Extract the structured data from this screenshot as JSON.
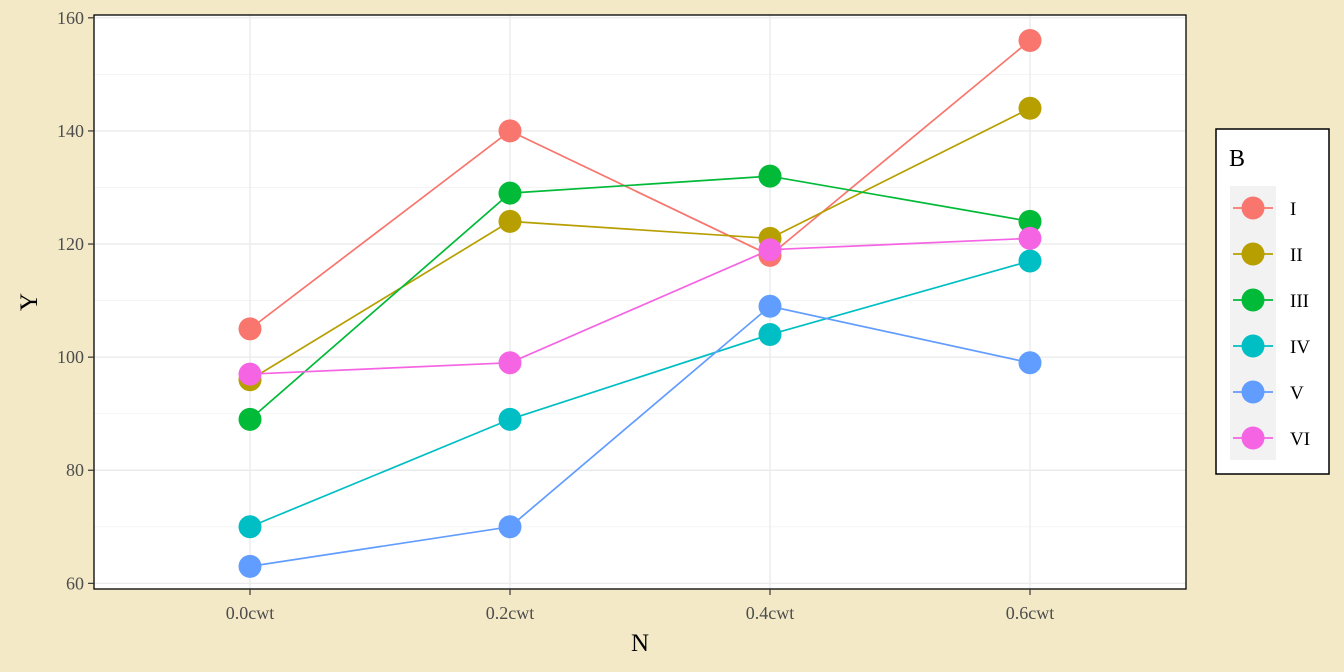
{
  "chart_data": {
    "type": "line",
    "title": "",
    "xlabel": "N",
    "ylabel": "Y",
    "categories": [
      "0.0cwt",
      "0.2cwt",
      "0.4cwt",
      "0.6cwt"
    ],
    "yticks": [
      60,
      80,
      100,
      120,
      140,
      160
    ],
    "ylim": [
      59,
      160.5
    ],
    "grid": true,
    "legend": {
      "title": "B",
      "position": "right"
    },
    "series": [
      {
        "name": "I",
        "color": "#f8766d",
        "values": [
          105,
          140,
          118,
          156
        ]
      },
      {
        "name": "II",
        "color": "#b79f00",
        "values": [
          96,
          124,
          121,
          144
        ]
      },
      {
        "name": "III",
        "color": "#00ba38",
        "values": [
          89,
          129,
          132,
          124
        ]
      },
      {
        "name": "IV",
        "color": "#00bfc4",
        "values": [
          70,
          89,
          104,
          117
        ]
      },
      {
        "name": "V",
        "color": "#619cff",
        "values": [
          63,
          70,
          109,
          99
        ]
      },
      {
        "name": "VI",
        "color": "#f564e3",
        "values": [
          97,
          99,
          119,
          121
        ]
      }
    ]
  },
  "colors": {
    "page_background": "#f3e9c7",
    "panel_background": "#ffffff",
    "grid": "#ebebeb",
    "axis": "#000000"
  }
}
